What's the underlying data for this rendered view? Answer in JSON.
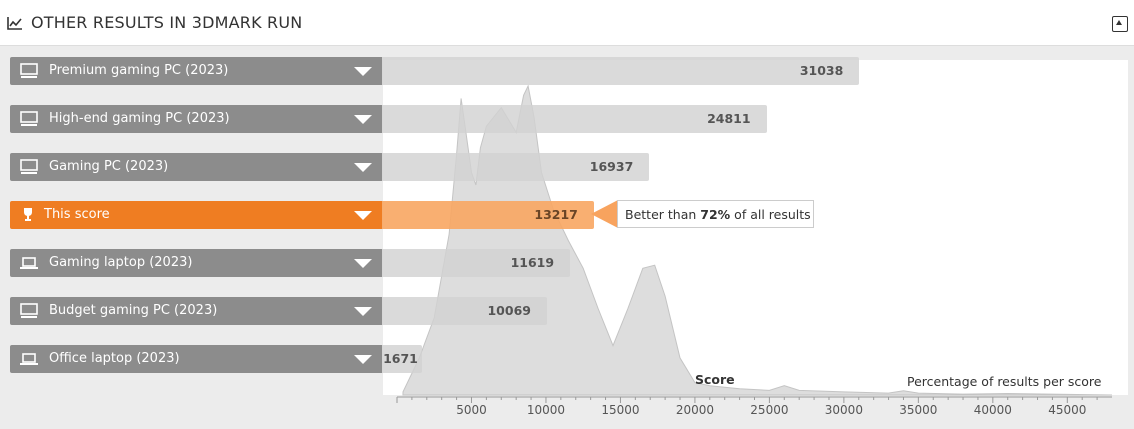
{
  "header": {
    "title": "OTHER RESULTS IN 3DMARK RUN"
  },
  "colors": {
    "accent": "#ef7d22",
    "label_bg": "#8c8c8c",
    "bar_bg": "#d2d2d2",
    "distribution": "#dddddd"
  },
  "tooltip": {
    "prefix": "Better than",
    "value": "72%",
    "suffix": "of all results"
  },
  "chart_data": {
    "type": "bar",
    "orientation": "horizontal",
    "xlabel": "Score",
    "secondary_label": "Percentage of results per score",
    "xlim": [
      0,
      48000
    ],
    "x_ticks": [
      5000,
      10000,
      15000,
      20000,
      25000,
      30000,
      35000,
      40000,
      45000
    ],
    "categories": [
      {
        "name": "Premium gaming PC (2023)",
        "icon": "desktop-icon",
        "value": 31038,
        "highlight": false
      },
      {
        "name": "High-end gaming PC (2023)",
        "icon": "desktop-icon",
        "value": 24811,
        "highlight": false
      },
      {
        "name": "Gaming PC (2023)",
        "icon": "desktop-icon",
        "value": 16937,
        "highlight": false
      },
      {
        "name": "This score",
        "icon": "trophy-icon",
        "value": 13217,
        "highlight": true
      },
      {
        "name": "Gaming laptop (2023)",
        "icon": "laptop-icon",
        "value": 11619,
        "highlight": false
      },
      {
        "name": "Budget gaming PC (2023)",
        "icon": "desktop-icon",
        "value": 10069,
        "highlight": false
      },
      {
        "name": "Office laptop (2023)",
        "icon": "laptop-icon",
        "value": 1671,
        "highlight": false
      }
    ],
    "distribution": {
      "x": [
        400,
        1500,
        2500,
        3500,
        4000,
        4300,
        4600,
        5000,
        5300,
        5600,
        6000,
        7000,
        8000,
        8500,
        8800,
        9200,
        9700,
        10500,
        11500,
        12500,
        13500,
        14500,
        15500,
        16500,
        17300,
        18000,
        19000,
        20000,
        21000,
        23000,
        25000,
        26000,
        27000,
        30000,
        33000,
        34000,
        35000,
        38000,
        41000,
        48000
      ],
      "y": [
        1,
        12,
        25,
        52,
        78,
        96,
        86,
        72,
        68,
        80,
        87,
        93,
        85,
        97,
        100,
        90,
        72,
        60,
        50,
        41,
        28,
        16,
        28,
        41,
        42,
        32,
        12,
        4,
        3,
        2,
        1.5,
        3,
        1.5,
        1,
        0.6,
        1.4,
        0.6,
        0.3,
        0.5,
        0
      ]
    }
  }
}
